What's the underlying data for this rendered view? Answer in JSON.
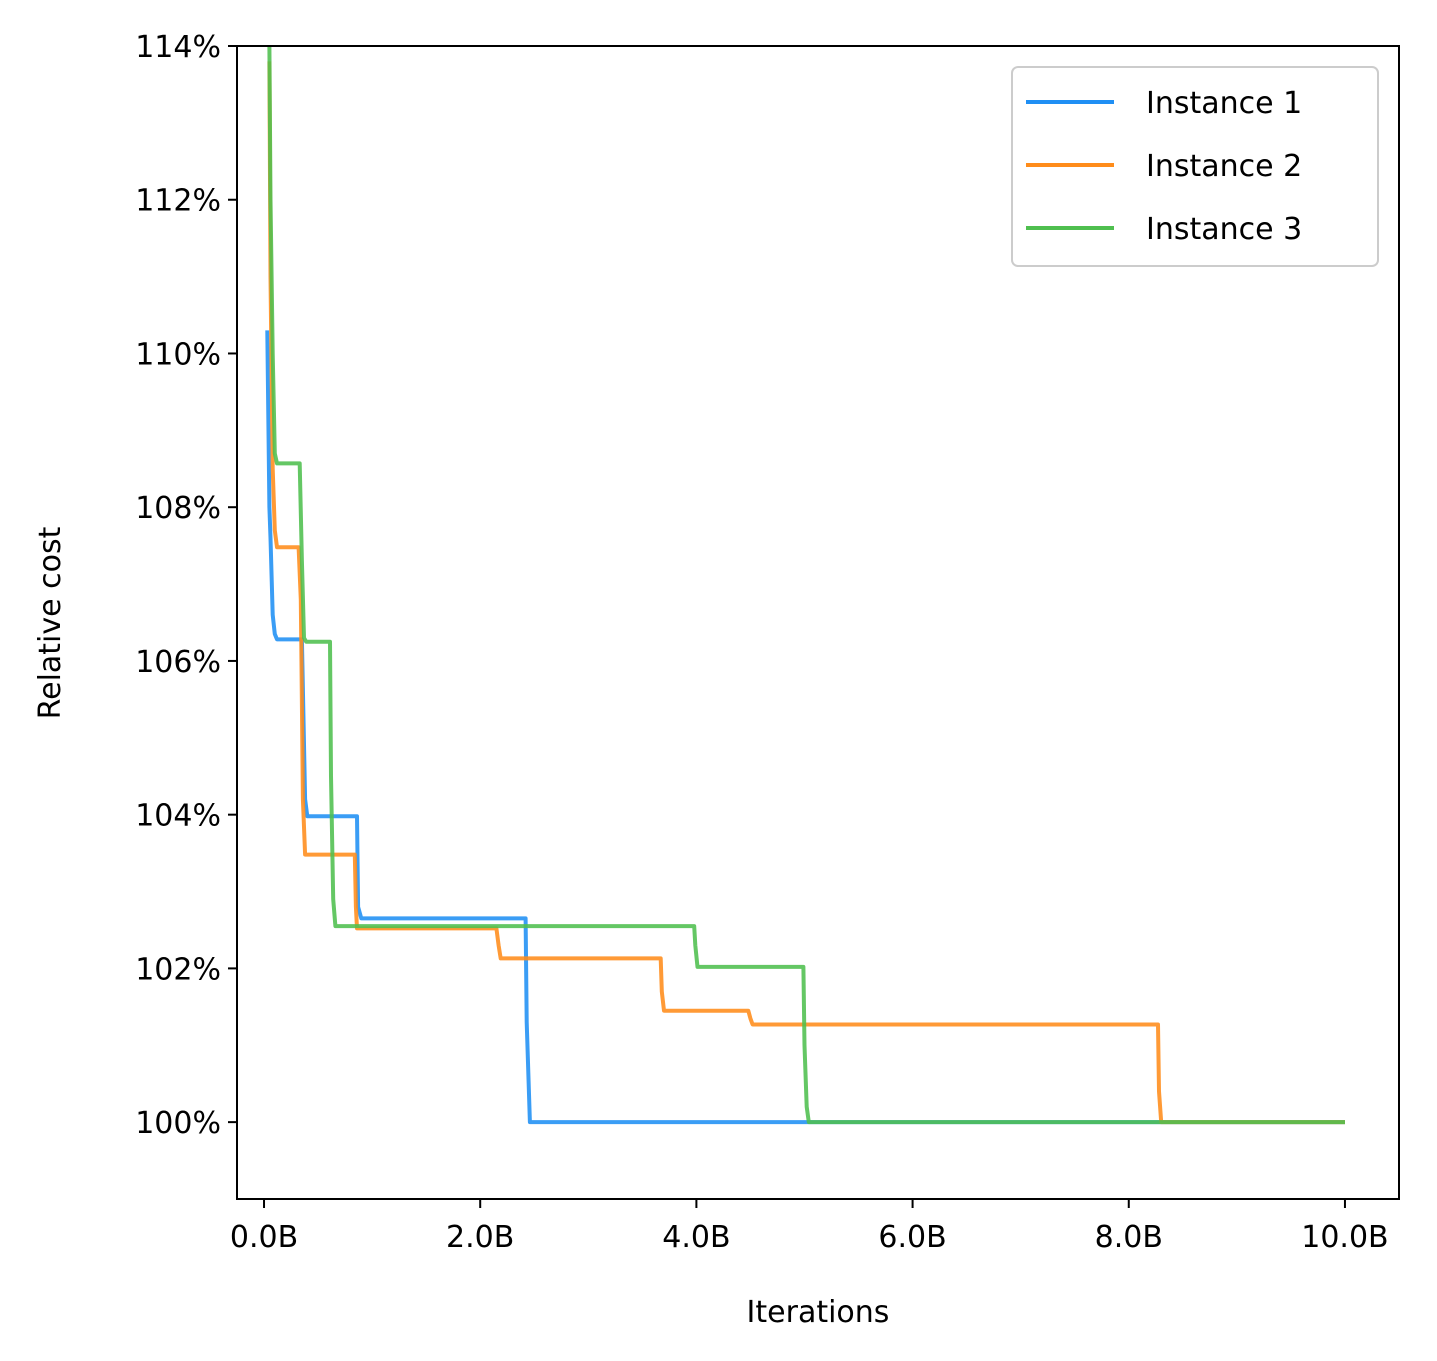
{
  "chart_data": {
    "type": "line",
    "title": "",
    "xlabel": "Iterations",
    "ylabel": "Relative cost",
    "xlim": [
      -0.25,
      10.5
    ],
    "ylim": [
      99.0,
      114.0
    ],
    "x_unit": "billion iterations",
    "y_unit": "%",
    "x_ticks": [
      {
        "value": 0,
        "label": "0.0B"
      },
      {
        "value": 2,
        "label": "2.0B"
      },
      {
        "value": 4,
        "label": "4.0B"
      },
      {
        "value": 6,
        "label": "6.0B"
      },
      {
        "value": 8,
        "label": "8.0B"
      },
      {
        "value": 10,
        "label": "10.0B"
      }
    ],
    "y_ticks": [
      {
        "value": 100,
        "label": "100%"
      },
      {
        "value": 102,
        "label": "102%"
      },
      {
        "value": 104,
        "label": "104%"
      },
      {
        "value": 106,
        "label": "106%"
      },
      {
        "value": 108,
        "label": "108%"
      },
      {
        "value": 110,
        "label": "110%"
      },
      {
        "value": 112,
        "label": "112%"
      },
      {
        "value": 114,
        "label": "114%"
      }
    ],
    "grid": false,
    "legend_position": "top-right",
    "series": [
      {
        "name": "Instance 1",
        "color": "#1f8ff4",
        "x": [
          0.03,
          0.05,
          0.06,
          0.08,
          0.1,
          0.12,
          0.35,
          0.38,
          0.4,
          0.86,
          0.87,
          0.9,
          2.42,
          2.43,
          2.46,
          10.0
        ],
        "y": [
          110.3,
          108.0,
          107.6,
          106.6,
          106.35,
          106.28,
          106.28,
          104.2,
          103.98,
          103.98,
          102.8,
          102.65,
          102.65,
          101.3,
          100.0,
          100.0
        ]
      },
      {
        "name": "Instance 2",
        "color": "#ff8c1a",
        "x": [
          0.05,
          0.06,
          0.08,
          0.1,
          0.12,
          0.32,
          0.34,
          0.36,
          0.38,
          0.84,
          0.85,
          0.86,
          2.15,
          2.17,
          2.19,
          3.67,
          3.68,
          3.7,
          4.48,
          4.5,
          4.52,
          8.27,
          8.28,
          8.3,
          10.0
        ],
        "y": [
          113.8,
          111.0,
          108.5,
          107.7,
          107.48,
          107.48,
          106.8,
          104.2,
          103.48,
          103.48,
          102.8,
          102.52,
          102.52,
          102.3,
          102.13,
          102.13,
          101.7,
          101.45,
          101.45,
          101.35,
          101.27,
          101.27,
          100.4,
          100.0,
          100.0
        ]
      },
      {
        "name": "Instance 3",
        "color": "#4fbf4f",
        "x": [
          0.05,
          0.06,
          0.08,
          0.1,
          0.12,
          0.33,
          0.35,
          0.37,
          0.39,
          0.61,
          0.62,
          0.64,
          0.66,
          3.98,
          3.99,
          4.01,
          4.99,
          5.0,
          5.02,
          5.04,
          10.0
        ],
        "y": [
          114.0,
          112.0,
          110.0,
          108.7,
          108.57,
          108.57,
          107.3,
          106.3,
          106.25,
          106.25,
          104.5,
          102.9,
          102.55,
          102.55,
          102.3,
          102.02,
          102.02,
          101.0,
          100.2,
          100.0,
          100.0
        ]
      }
    ]
  }
}
